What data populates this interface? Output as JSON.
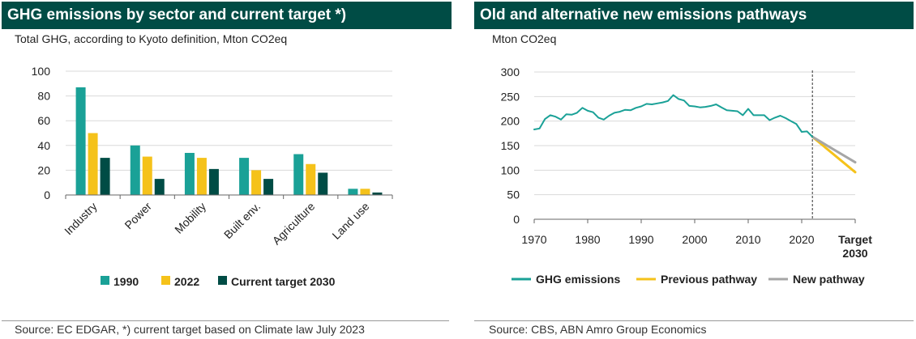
{
  "left_panel": {
    "title": "GHG emissions by sector and current target *)",
    "subtitle": "Total GHG, according to Kyoto definition, Mton CO2eq",
    "source": "Source: EC EDGAR, *) current target based on Climate law July 2023"
  },
  "right_panel": {
    "title": "Old and alternative new emissions pathways",
    "subtitle": "Mton CO2eq",
    "source": "Source: CBS, ABN Amro Group Economics"
  },
  "colors": {
    "title_bg": "#004c45",
    "series_1990": "#1aa197",
    "series_2022": "#f5c21a",
    "series_target": "#004c45",
    "ghg_line": "#1aa197",
    "previous_pathway": "#f5c21a",
    "new_pathway": "#a6a6a6"
  },
  "chart_data": [
    {
      "type": "bar",
      "title": "GHG emissions by sector and current target *)",
      "ylabel": "Total GHG, according to Kyoto definition, Mton CO2eq",
      "categories": [
        "Industry",
        "Power",
        "Mobility",
        "Built env.",
        "Agriculture",
        "Land use"
      ],
      "series": [
        {
          "name": "1990",
          "values": [
            87,
            40,
            34,
            30,
            33,
            5
          ]
        },
        {
          "name": "2022",
          "values": [
            50,
            31,
            30,
            20,
            25,
            5
          ]
        },
        {
          "name": "Current target 2030",
          "values": [
            30,
            13,
            21,
            13,
            18,
            2
          ]
        }
      ],
      "ylim": [
        0,
        100
      ],
      "yticks": [
        0,
        20,
        40,
        60,
        80,
        100
      ],
      "grid": true,
      "legend": "bottom"
    },
    {
      "type": "line",
      "title": "Old and alternative new emissions pathways",
      "ylabel": "Mton CO2eq",
      "ylim": [
        0,
        300
      ],
      "yticks": [
        0,
        50,
        100,
        150,
        200,
        250,
        300
      ],
      "xticks": [
        "1970",
        "1980",
        "1990",
        "2000",
        "2010",
        "2020",
        "Target 2030"
      ],
      "grid": true,
      "legend": "bottom",
      "series": [
        {
          "name": "GHG emissions",
          "x": [
            1970,
            1971,
            1972,
            1973,
            1974,
            1975,
            1976,
            1977,
            1978,
            1979,
            1980,
            1981,
            1982,
            1983,
            1984,
            1985,
            1986,
            1987,
            1988,
            1989,
            1990,
            1991,
            1992,
            1993,
            1994,
            1995,
            1996,
            1997,
            1998,
            1999,
            2000,
            2001,
            2002,
            2003,
            2004,
            2005,
            2006,
            2007,
            2008,
            2009,
            2010,
            2011,
            2012,
            2013,
            2014,
            2015,
            2016,
            2017,
            2018,
            2019,
            2020,
            2021,
            2022
          ],
          "y": [
            183,
            185,
            204,
            212,
            209,
            203,
            214,
            213,
            217,
            227,
            221,
            218,
            207,
            203,
            211,
            217,
            219,
            223,
            222,
            227,
            230,
            235,
            234,
            236,
            238,
            241,
            253,
            245,
            242,
            231,
            230,
            228,
            229,
            231,
            234,
            228,
            222,
            221,
            220,
            212,
            225,
            212,
            212,
            212,
            202,
            207,
            211,
            206,
            200,
            194,
            178,
            179,
            168
          ]
        },
        {
          "name": "Previous pathway",
          "x": [
            2022,
            2030
          ],
          "y": [
            168,
            96
          ]
        },
        {
          "name": "New pathway",
          "x": [
            2022,
            2030
          ],
          "y": [
            168,
            116
          ]
        }
      ],
      "annotations": [
        "vertical dashed line at 2022"
      ]
    }
  ]
}
